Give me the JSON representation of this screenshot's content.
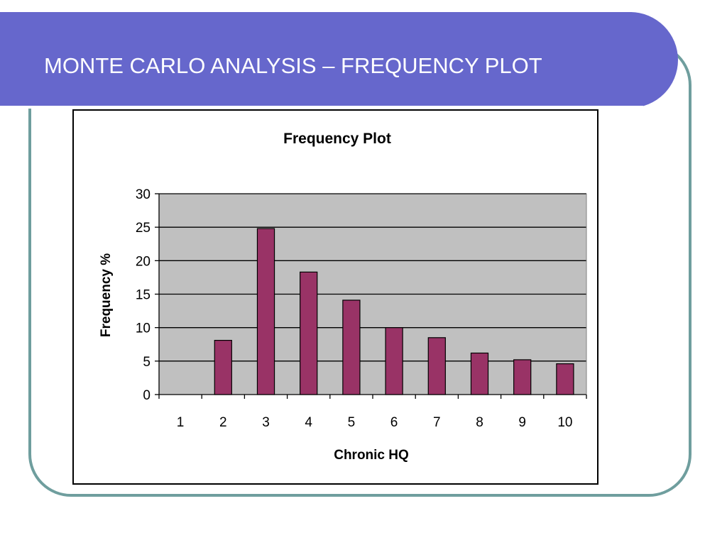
{
  "slide": {
    "title": "MONTE CARLO ANALYSIS – FREQUENCY PLOT"
  },
  "colors": {
    "title_bar": "#6667cc",
    "frame_border": "#6f9e9e",
    "plot_background": "#c0c0c0",
    "bar_fill": "#993366"
  },
  "chart_data": {
    "type": "bar",
    "title": "Frequency Plot",
    "xlabel": "Chronic HQ",
    "ylabel": "Frequency %",
    "categories": [
      "1",
      "2",
      "3",
      "4",
      "5",
      "6",
      "7",
      "8",
      "9",
      "10"
    ],
    "values": [
      0,
      8.1,
      24.8,
      18.3,
      14.1,
      10.0,
      8.5,
      6.2,
      5.2,
      4.6
    ],
    "ylim": [
      0,
      30
    ],
    "yticks": [
      "0",
      "5",
      "10",
      "15",
      "20",
      "25",
      "30"
    ],
    "grid": true,
    "legend": "none"
  }
}
